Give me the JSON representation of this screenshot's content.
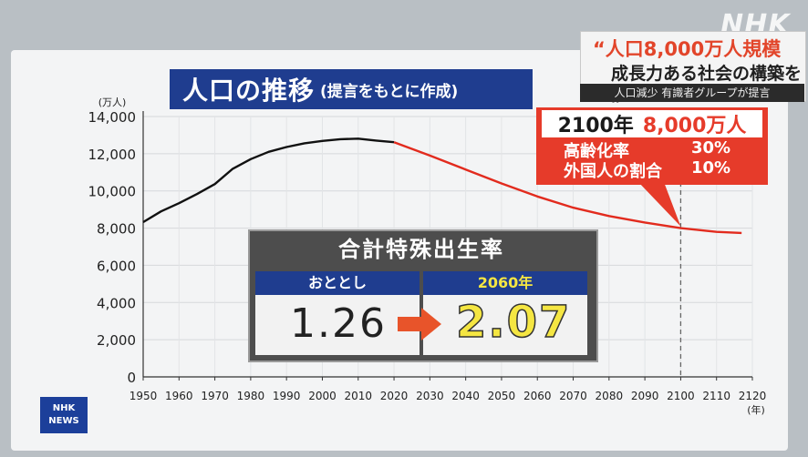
{
  "title": {
    "main": "人口の推移",
    "sub": "(提言をもとに作成)"
  },
  "header": {
    "brand": "NHK",
    "line1": "“人口8,000万人規模",
    "line2": "成長力ある社会の構築を„",
    "sub": "人口減少 有識者グループが提言"
  },
  "callout": {
    "year": "2100年",
    "population": "8,000万人",
    "rows": [
      {
        "label": "高齢化率",
        "value": "30%"
      },
      {
        "label": "外国人の割合",
        "value": "10%"
      }
    ]
  },
  "fertility": {
    "title": "合計特殊出生率",
    "left_label": "おととし",
    "left_value": "1.26",
    "right_label": "2060年",
    "right_value": "2.07",
    "arrow_color": "#e8542a"
  },
  "logo": {
    "line1": "NHK",
    "line2": "NEWS"
  },
  "chart_data": {
    "type": "line",
    "ylabel": "(万人)",
    "xlabel": "(年)",
    "ylim": [
      0,
      14000
    ],
    "xlim": [
      1950,
      2120
    ],
    "yticks": [
      0,
      2000,
      4000,
      6000,
      8000,
      10000,
      12000,
      14000
    ],
    "ytick_labels": [
      "0",
      "2,000",
      "4,000",
      "6,000",
      "8,000",
      "10,000",
      "12,000",
      "14,000"
    ],
    "xticks": [
      1950,
      1960,
      1970,
      1980,
      1990,
      2000,
      2010,
      2020,
      2030,
      2040,
      2050,
      2060,
      2070,
      2080,
      2090,
      2100,
      2110,
      2120
    ],
    "grid": true,
    "series": [
      {
        "color": "#111111",
        "x": [
          1950,
          1955,
          1960,
          1965,
          1970,
          1975,
          1980,
          1985,
          1990,
          1995,
          2000,
          2005,
          2010,
          2015,
          2020
        ],
        "y": [
          8320,
          8900,
          9340,
          9830,
          10370,
          11190,
          11710,
          12100,
          12360,
          12560,
          12690,
          12780,
          12810,
          12710,
          12620
        ]
      },
      {
        "color": "#e22b1e",
        "x": [
          2020,
          2030,
          2040,
          2050,
          2060,
          2070,
          2080,
          2090,
          2100,
          2110,
          2117
        ],
        "y": [
          12620,
          11900,
          11150,
          10400,
          9700,
          9100,
          8650,
          8300,
          8000,
          7800,
          7740
        ]
      }
    ],
    "marker": {
      "x": 2100,
      "style": "dashed"
    }
  }
}
